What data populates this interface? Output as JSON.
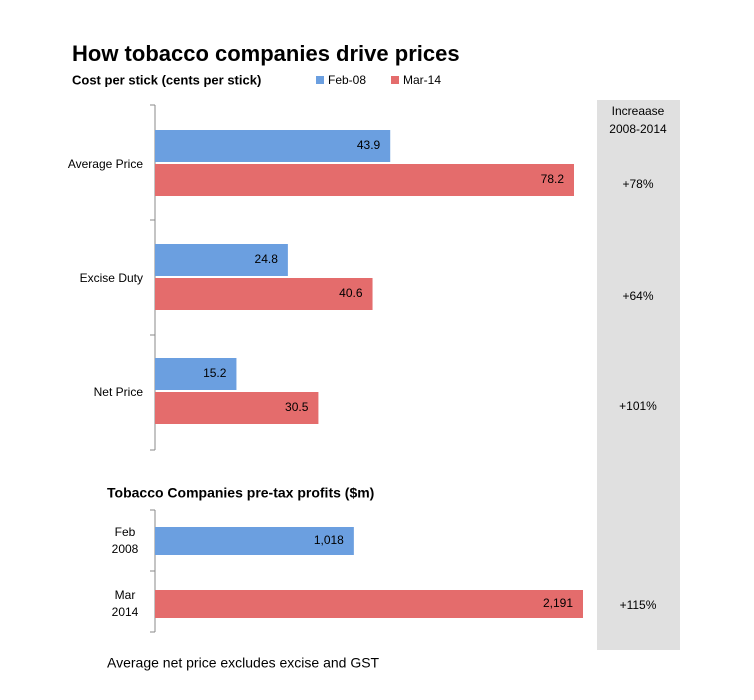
{
  "chart_data": [
    {
      "type": "hbar",
      "title": "How tobacco companies drive prices",
      "subtitle": "Cost per stick (cents per stick)",
      "categories": [
        "Average Price",
        "Excise Duty",
        "Net Price"
      ],
      "series": [
        {
          "name": "Feb-08",
          "color": "#6b9fe0",
          "values": [
            43.9,
            24.8,
            15.2
          ]
        },
        {
          "name": "Mar-14",
          "color": "#e46c6c",
          "values": [
            78.2,
            40.6,
            30.5
          ]
        }
      ]
    },
    {
      "type": "hbar-single",
      "title": "Tobacco Companies pre-tax profits ($m)",
      "categories": [
        "Feb 2008",
        "Mar 2014"
      ],
      "values": [
        1018,
        2191
      ],
      "value_labels": [
        "1,018",
        "2,191"
      ],
      "colors": [
        "#6b9fe0",
        "#e46c6c"
      ]
    }
  ],
  "side_panel": {
    "header": [
      "Increaase",
      "2008-2014"
    ],
    "values": [
      "+78%",
      "+64%",
      "+101%",
      "+115%"
    ]
  },
  "footnote": "Average net price excludes excise and GST"
}
